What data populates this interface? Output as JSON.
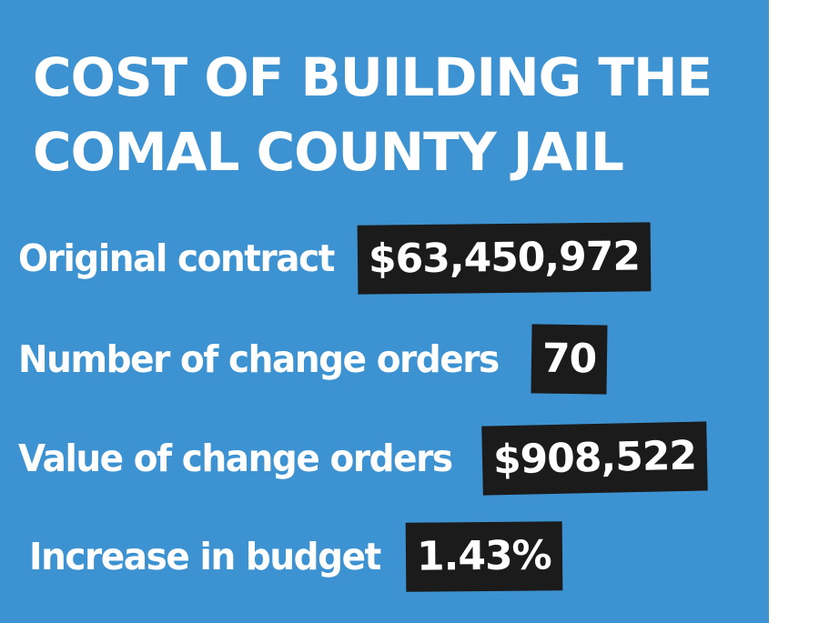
{
  "title": {
    "line1": "COST OF BUILDING THE",
    "line2": "COMAL COUNTY JAIL"
  },
  "rows": [
    {
      "label": "Original contract",
      "value": "$63,450,972"
    },
    {
      "label": "Number of change orders",
      "value": "70"
    },
    {
      "label": "Value of change orders",
      "value": "$908,522"
    },
    {
      "label": "Increase in budget",
      "value": "1.43%"
    }
  ],
  "colors": {
    "background": "#3d93d1",
    "value_box": "#1b1b1b",
    "text": "#ffffff"
  }
}
